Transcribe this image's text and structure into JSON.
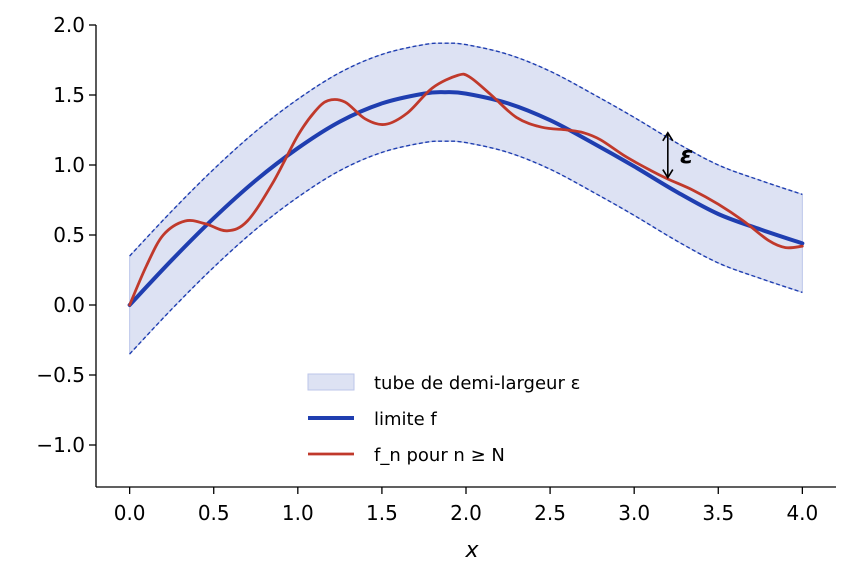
{
  "chart_data": {
    "type": "line",
    "xlabel": "x",
    "ylabel": "",
    "xlim": [
      -0.2,
      4.2
    ],
    "ylim": [
      -1.3,
      2.0
    ],
    "xticks": [
      0.0,
      0.5,
      1.0,
      1.5,
      2.0,
      2.5,
      3.0,
      3.5,
      4.0
    ],
    "xtick_labels": [
      "0.0",
      "0.5",
      "1.0",
      "1.5",
      "2.0",
      "2.5",
      "3.0",
      "3.5",
      "4.0"
    ],
    "yticks": [
      -1.0,
      -0.5,
      0.0,
      0.5,
      1.0,
      1.5,
      2.0
    ],
    "ytick_labels": [
      "−1.0",
      "−0.5",
      "0.0",
      "0.5",
      "1.0",
      "1.5",
      "2.0"
    ],
    "grid": false,
    "legend_position": "bottom-center",
    "band": {
      "name": "tube de demi-largeur ε",
      "half_width": 0.35,
      "color_fill": "#dde2f3",
      "color_edge": "#1f3eb0"
    },
    "series": [
      {
        "name": "limite f",
        "color": "#1f3eb0",
        "x": [
          0.0,
          0.25,
          0.5,
          0.75,
          1.0,
          1.25,
          1.5,
          1.75,
          1.875,
          2.0,
          2.25,
          2.5,
          2.75,
          3.0,
          3.25,
          3.5,
          3.75,
          4.0
        ],
        "y": [
          0.0,
          0.32,
          0.62,
          0.89,
          1.12,
          1.31,
          1.44,
          1.51,
          1.52,
          1.51,
          1.44,
          1.32,
          1.16,
          0.99,
          0.81,
          0.65,
          0.54,
          0.44
        ]
      },
      {
        "name": "f_n pour n ≥ N",
        "color": "#c0392b",
        "x": [
          0.0,
          0.1,
          0.2,
          0.33,
          0.45,
          0.58,
          0.7,
          0.85,
          1.0,
          1.1,
          1.18,
          1.28,
          1.4,
          1.52,
          1.65,
          1.8,
          1.95,
          2.02,
          2.15,
          2.3,
          2.45,
          2.6,
          2.7,
          2.8,
          2.95,
          3.1,
          3.2,
          3.35,
          3.5,
          3.65,
          3.8,
          3.9,
          4.0
        ],
        "y": [
          0.0,
          0.28,
          0.5,
          0.6,
          0.58,
          0.53,
          0.6,
          0.87,
          1.21,
          1.38,
          1.46,
          1.45,
          1.33,
          1.29,
          1.37,
          1.55,
          1.64,
          1.63,
          1.5,
          1.34,
          1.27,
          1.25,
          1.23,
          1.18,
          1.06,
          0.96,
          0.9,
          0.82,
          0.72,
          0.6,
          0.46,
          0.41,
          0.42
        ]
      }
    ],
    "annotation": {
      "label": "ε",
      "x": 3.2,
      "y_from": 0.91,
      "y_to": 1.23
    }
  }
}
